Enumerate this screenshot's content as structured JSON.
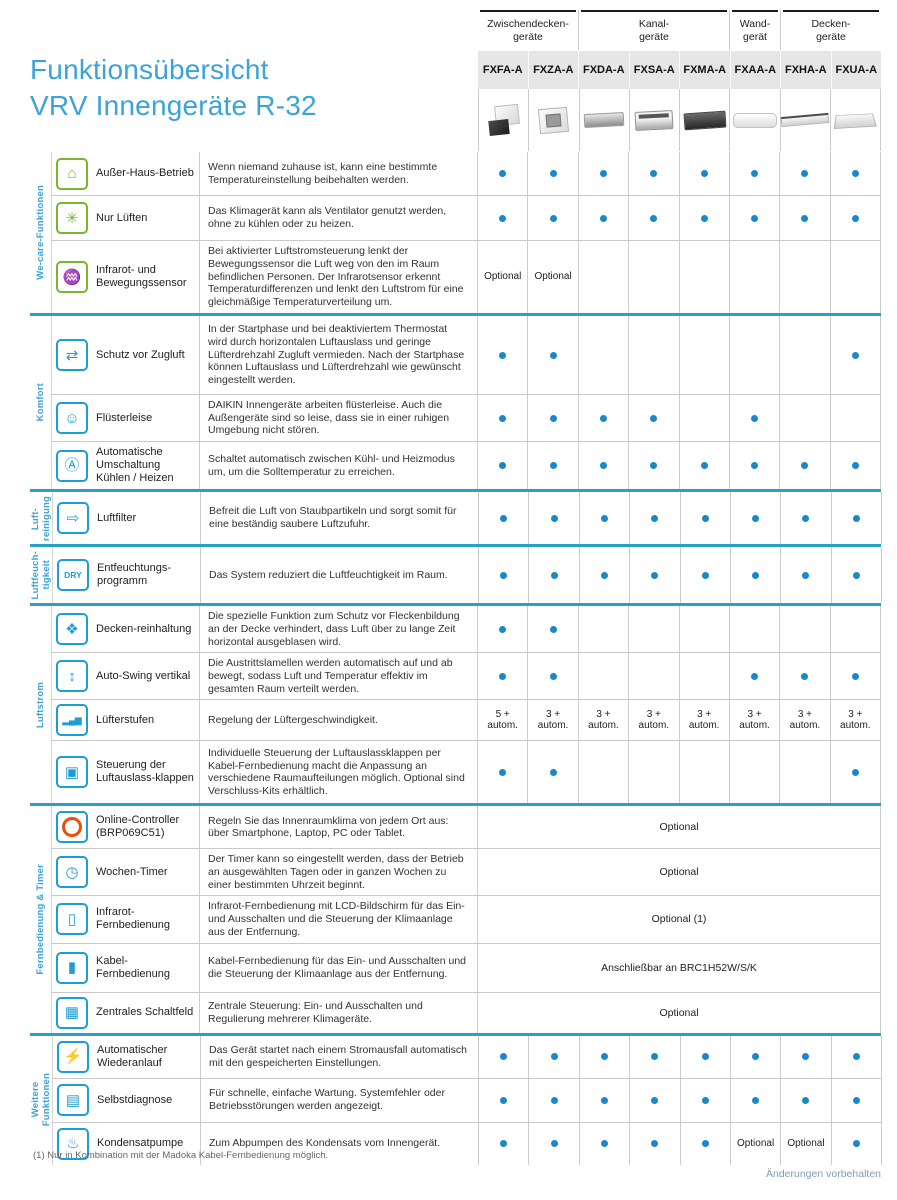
{
  "page": {
    "title_line1": "Funktionsübersicht",
    "title_line2": "VRV Innengeräte R-32",
    "footnote": "(1) Nur in Kombination mit der Madoka Kabel-Fernbedienung möglich.",
    "changes_note": "Änderungen vorbehalten"
  },
  "colors": {
    "accent_blue": "#3BA3D8",
    "group_divider": "#2AA0C8",
    "dot_blue": "#1A87C6",
    "wecare_green": "#76B82A",
    "icon_blue": "#1D9DD4",
    "header_gray": "#E6E6E6"
  },
  "header": {
    "groups": [
      {
        "label": "Zwischendecken-\ngeräte",
        "span": 2
      },
      {
        "label": "Kanal-\ngeräte",
        "span": 3
      },
      {
        "label": "Wand-\ngerät",
        "span": 1
      },
      {
        "label": "Decken-\ngeräte",
        "span": 2
      }
    ],
    "products": [
      {
        "model": "FXFA-A",
        "image": "cassette-round-flow"
      },
      {
        "model": "FXZA-A",
        "image": "cassette-fully-flat"
      },
      {
        "model": "FXDA-A",
        "image": "slim-duct"
      },
      {
        "model": "FXSA-A",
        "image": "medium-duct"
      },
      {
        "model": "FXMA-A",
        "image": "large-duct"
      },
      {
        "model": "FXAA-A",
        "image": "wall-mounted"
      },
      {
        "model": "FXHA-A",
        "image": "ceiling-suspended"
      },
      {
        "model": "FXUA-A",
        "image": "ceiling-cassette"
      }
    ]
  },
  "table": {
    "groups": [
      {
        "label": "We-care-Funktionen",
        "icon_color": "#76B82A",
        "rows": [
          {
            "icon": "house-key-icon",
            "icon_glyph": "⌂",
            "feature": "Außer-Haus-Betrieb",
            "description": "Wenn niemand zuhause ist, kann eine bestimmte Temperatureinstellung beibehalten werden.",
            "cells": [
              "dot",
              "dot",
              "dot",
              "dot",
              "dot",
              "dot",
              "dot",
              "dot"
            ]
          },
          {
            "icon": "fan-icon",
            "icon_glyph": "✳",
            "feature": "Nur Lüften",
            "description": "Das Klimagerät kann als Ventilator genutzt werden, ohne zu kühlen oder zu heizen.",
            "cells": [
              "dot",
              "dot",
              "dot",
              "dot",
              "dot",
              "dot",
              "dot",
              "dot"
            ]
          },
          {
            "icon": "motion-sensor-icon",
            "icon_glyph": "♒",
            "feature": "Infrarot- und Bewegungssensor",
            "description": "Bei aktivierter Luftstromsteuerung lenkt der Bewegungssensor die Luft weg von den im Raum befindlichen Personen. Der Infrarotsensor erkennt Temperaturdifferenzen und lenkt den Luftstrom für eine gleichmäßige Temperaturverteilung um.",
            "cells": [
              "Optional",
              "Optional",
              "",
              "",
              "",
              "",
              "",
              ""
            ]
          }
        ]
      },
      {
        "label": "Komfort",
        "icon_color": "#1D9DD4",
        "rows": [
          {
            "icon": "draft-protection-icon",
            "icon_glyph": "⇄",
            "feature": "Schutz vor Zugluft",
            "description": "In der Startphase und bei deaktiviertem Thermostat wird durch horizontalen Luftauslass und geringe Lüfterdrehzahl Zugluft vermieden. Nach der Start­phase können Luftauslass und Lüfterdrehzahl wie gewünscht eingestellt werden.",
            "cells": [
              "dot",
              "dot",
              "",
              "",
              "",
              "",
              "",
              "dot"
            ]
          },
          {
            "icon": "whisper-quiet-icon",
            "icon_glyph": "☺",
            "feature": "Flüsterleise",
            "description": "DAIKIN Innengeräte arbeiten flüsterleise. Auch die Außengeräte sind so leise, dass sie in einer ruhigen Umgebung nicht stören.",
            "cells": [
              "dot",
              "dot",
              "dot",
              "dot",
              "",
              "dot",
              "",
              ""
            ]
          },
          {
            "icon": "auto-changeover-icon",
            "icon_glyph": "Ⓐ",
            "feature": "Automatische Umschaltung Kühlen / Heizen",
            "description": "Schaltet automatisch zwischen Kühl- und Heizmodus um, um die Solltemperatur zu erreichen.",
            "cells": [
              "dot",
              "dot",
              "dot",
              "dot",
              "dot",
              "dot",
              "dot",
              "dot"
            ]
          }
        ]
      },
      {
        "label": "Luft-\nreinigung",
        "icon_color": "#1D9DD4",
        "rows": [
          {
            "icon": "air-filter-icon",
            "icon_glyph": "⇨",
            "feature": "Luftfilter",
            "description": "Befreit die Luft von Staubpartikeln und sorgt somit für eine beständig saubere Luftzufuhr.",
            "cells": [
              "dot",
              "dot",
              "dot",
              "dot",
              "dot",
              "dot",
              "dot",
              "dot"
            ]
          }
        ]
      },
      {
        "label": "Luftfeuch-\ntigkeit",
        "icon_color": "#1D9DD4",
        "rows": [
          {
            "icon": "dehumidification-icon",
            "icon_glyph": "DRY",
            "feature": "Entfeuchtungs-programm",
            "description": "Das System reduziert die Luftfeuchtigkeit im Raum.",
            "cells": [
              "dot",
              "dot",
              "dot",
              "dot",
              "dot",
              "dot",
              "dot",
              "dot"
            ]
          }
        ]
      },
      {
        "label": "Luftstrom",
        "icon_color": "#1D9DD4",
        "rows": [
          {
            "icon": "ceiling-protection-icon",
            "icon_glyph": "❖",
            "feature": "Decken-reinhaltung",
            "description": "Die spezielle Funktion zum Schutz vor Fleckenbildung an der Decke verhindert, dass Luft über zu lange Zeit horizontal ausgeblasen wird.",
            "cells": [
              "dot",
              "dot",
              "",
              "",
              "",
              "",
              "",
              ""
            ]
          },
          {
            "icon": "auto-swing-icon",
            "icon_glyph": "↕",
            "feature": "Auto-Swing vertikal",
            "description": "Die Austrittslamellen werden automatisch auf und ab bewegt, sodass Luft und Temperatur effektiv im gesamten Raum verteilt werden.",
            "cells": [
              "dot",
              "dot",
              "",
              "",
              "",
              "dot",
              "dot",
              "dot"
            ]
          },
          {
            "icon": "fan-speed-icon",
            "icon_glyph": "▂▄▆",
            "feature": "Lüfterstufen",
            "description": "Regelung der Lüftergeschwindigkeit.",
            "cells": [
              "5 + autom.",
              "3 + autom.",
              "3 + autom.",
              "3 + autom.",
              "3 + autom.",
              "3 + autom.",
              "3 + autom.",
              "3 + autom."
            ]
          },
          {
            "icon": "flap-control-icon",
            "icon_glyph": "▣",
            "feature": "Steuerung der Luftauslass-klappen",
            "description": "Individuelle Steuerung der Luftauslassklappen per Kabel-Fernbedienung macht die Anpassung an verschiedene Raumaufteilungen möglich. Optional sind Verschluss-Kits erhältlich.",
            "cells": [
              "dot",
              "dot",
              "",
              "",
              "",
              "",
              "",
              "dot"
            ]
          }
        ]
      },
      {
        "label": "Fernbedienung & Timer",
        "icon_color": "#1D9DD4",
        "rows": [
          {
            "icon": "online-controller-icon",
            "icon_glyph": "",
            "feature": "Online-Controller (BRP069C51)",
            "description": "Regeln Sie das Innenraumklima von jedem Ort aus: über Smartphone, Laptop, PC oder Tablet.",
            "cells_span": "Optional"
          },
          {
            "icon": "weekly-timer-icon",
            "icon_glyph": "◷",
            "feature": "Wochen-Timer",
            "description": "Der Timer kann so eingestellt werden, dass der Betrieb an ausgewählten Tagen oder in ganzen Wochen zu einer bestimmten Uhrzeit beginnt.",
            "cells_span": "Optional"
          },
          {
            "icon": "ir-remote-icon",
            "icon_glyph": "▯",
            "feature": "Infrarot-Fernbedienung",
            "description": "Infrarot-Fernbedienung mit LCD-Bildschirm für das Ein- und Ausschalten und die Steuerung der Klimaanlage aus der Entfernung.",
            "cells_span": "Optional (1)"
          },
          {
            "icon": "wired-remote-icon",
            "icon_glyph": "▮",
            "feature": "Kabel-Fernbedienung",
            "description": "Kabel-Fernbedienung für das Ein- und Ausschalten und die Steuerung der Klimaanlage aus der Entfernung.",
            "cells_span": "Anschließbar an BRC1H52W/S/K"
          },
          {
            "icon": "central-control-icon",
            "icon_glyph": "▦",
            "feature": "Zentrales Schaltfeld",
            "description": "Zentrale Steuerung: Ein- und Ausschalten und Regulierung mehrerer Klimageräte.",
            "cells_span": "Optional"
          }
        ]
      },
      {
        "label": "Weitere\nFunktionen",
        "icon_color": "#1D9DD4",
        "rows": [
          {
            "icon": "auto-restart-icon",
            "icon_glyph": "⚡",
            "feature": "Automatischer Wiederanlauf",
            "description": "Das Gerät startet nach einem Stromausfall automatisch mit den gespeicherten Einstellungen.",
            "cells": [
              "dot",
              "dot",
              "dot",
              "dot",
              "dot",
              "dot",
              "dot",
              "dot"
            ]
          },
          {
            "icon": "self-diagnosis-icon",
            "icon_glyph": "▤",
            "feature": "Selbstdiagnose",
            "description": "Für schnelle, einfache Wartung. Systemfehler oder Betriebsstörungen werden angezeigt.",
            "cells": [
              "dot",
              "dot",
              "dot",
              "dot",
              "dot",
              "dot",
              "dot",
              "dot"
            ]
          },
          {
            "icon": "condensate-pump-icon",
            "icon_glyph": "♨",
            "feature": "Kondensatpumpe",
            "description": "Zum Abpumpen des Kondensats vom Innengerät.",
            "cells": [
              "dot",
              "dot",
              "dot",
              "dot",
              "dot",
              "Optional",
              "Optional",
              "dot"
            ]
          }
        ]
      }
    ]
  }
}
